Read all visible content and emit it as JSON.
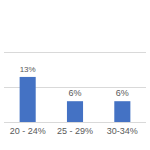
{
  "chart_data": {
    "type": "bar",
    "categories": [
      "20 - 24%",
      "25 - 29%",
      "30-34%"
    ],
    "values": [
      13,
      6,
      6
    ],
    "value_labels": [
      "13%",
      "6%",
      "6%"
    ],
    "color": "#4472c4",
    "ylim": [
      0,
      30
    ],
    "yticks": [
      0,
      10,
      20,
      30
    ],
    "grid": true,
    "data_labels": true,
    "tick_labels": "x"
  }
}
